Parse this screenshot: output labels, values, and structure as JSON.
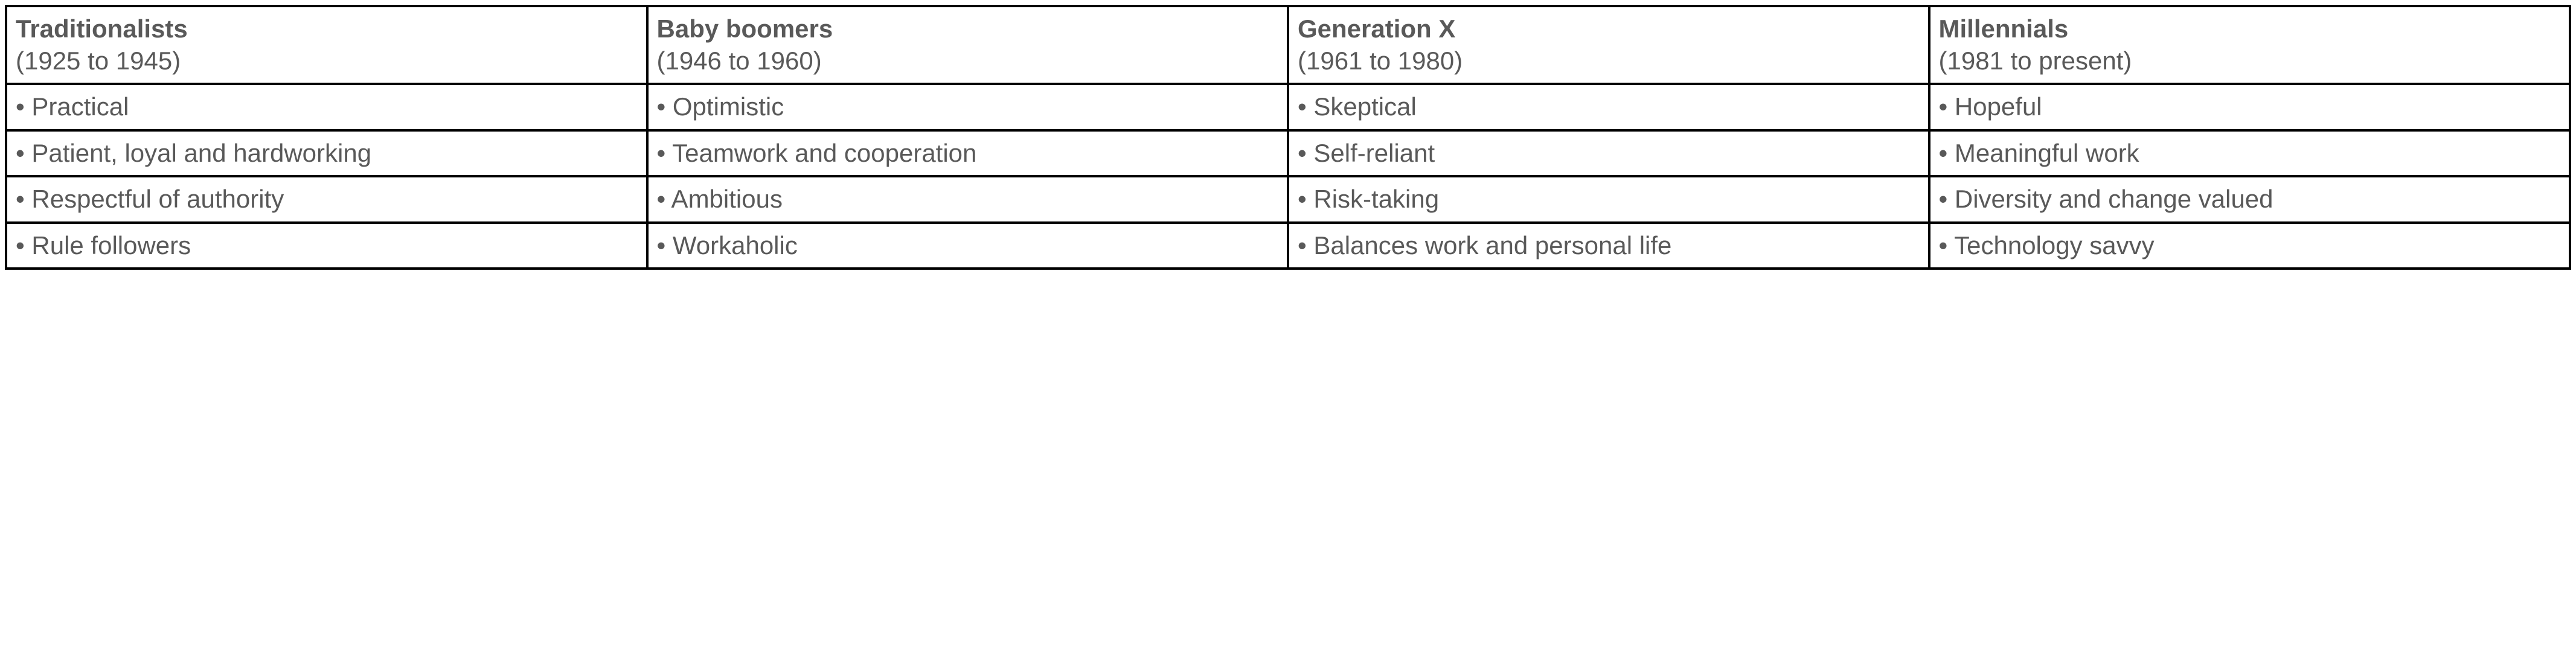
{
  "table": {
    "type": "table",
    "columns": 4,
    "rows": 5,
    "border_color": "#000000",
    "border_width": 4,
    "text_color": "#595959",
    "background_color": "#ffffff",
    "font_family": "Arial",
    "header_font_weight": "bold",
    "body_font_weight": "normal",
    "cell_font_size": 42,
    "generations": [
      {
        "name": "Traditionalists",
        "range": "(1925 to 1945)",
        "traits": [
          "• Practical",
          "• Patient, loyal and hardworking",
          "• Respectful of authority",
          "• Rule followers"
        ]
      },
      {
        "name": "Baby boomers",
        "range": "(1946 to 1960)",
        "traits": [
          "• Optimistic",
          "• Teamwork and cooperation",
          "• Ambitious",
          "• Workaholic"
        ]
      },
      {
        "name": "Generation X",
        "range": "(1961 to 1980)",
        "traits": [
          "• Skeptical",
          "• Self-reliant",
          "• Risk-taking",
          "• Balances work and personal life"
        ]
      },
      {
        "name": "Millennials",
        "range": "(1981 to present)",
        "traits": [
          "• Hopeful",
          "• Meaningful work",
          "• Diversity and change valued",
          "• Technology savvy"
        ]
      }
    ]
  }
}
